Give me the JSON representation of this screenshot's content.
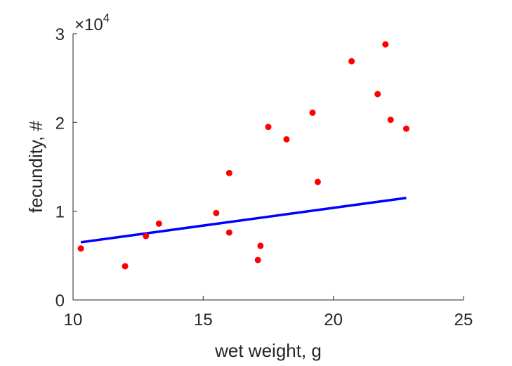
{
  "chart_data": {
    "type": "scatter",
    "title": "",
    "xlabel": "wet weight, g",
    "ylabel": "fecundity, #",
    "xlim": [
      10,
      25
    ],
    "ylim": [
      0,
      30000
    ],
    "xticks": [
      10,
      15,
      20,
      25
    ],
    "yticks": [
      0,
      10000,
      20000,
      30000
    ],
    "ytick_labels": [
      "0",
      "1",
      "2",
      "3"
    ],
    "y_multiplier": {
      "base": "×10",
      "exponent": "4"
    },
    "grid": false,
    "colors": {
      "points": "#ff0000",
      "fit_line": "#0000ff",
      "axis": "#262626"
    },
    "points": [
      {
        "x": 10.3,
        "y": 5800
      },
      {
        "x": 12.0,
        "y": 3800
      },
      {
        "x": 12.8,
        "y": 7200
      },
      {
        "x": 13.3,
        "y": 8600
      },
      {
        "x": 15.5,
        "y": 9800
      },
      {
        "x": 16.0,
        "y": 14300
      },
      {
        "x": 16.0,
        "y": 7600
      },
      {
        "x": 17.1,
        "y": 4500
      },
      {
        "x": 17.2,
        "y": 6100
      },
      {
        "x": 17.5,
        "y": 19500
      },
      {
        "x": 18.2,
        "y": 18100
      },
      {
        "x": 19.2,
        "y": 21100
      },
      {
        "x": 19.4,
        "y": 13300
      },
      {
        "x": 20.7,
        "y": 26900
      },
      {
        "x": 21.7,
        "y": 23200
      },
      {
        "x": 22.0,
        "y": 28800
      },
      {
        "x": 22.2,
        "y": 20300
      },
      {
        "x": 22.8,
        "y": 19300
      }
    ],
    "fit_line": {
      "x": [
        10.3,
        22.8
      ],
      "y": [
        6500,
        11500
      ]
    }
  }
}
